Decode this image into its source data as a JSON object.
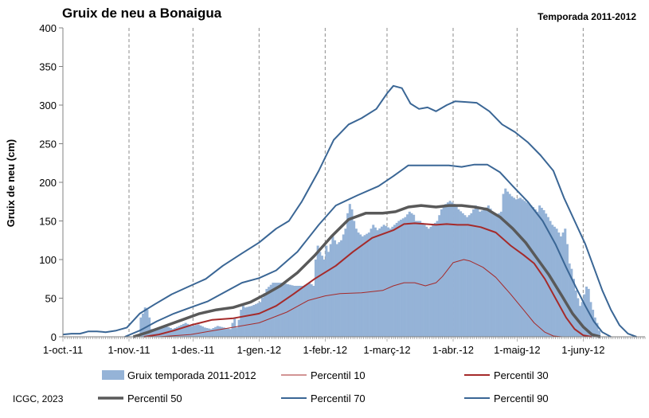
{
  "chart_data": {
    "type": "bar+line",
    "title": "Gruix de neu a Bonaigua",
    "subtitle": "Temporada 2011-2012",
    "ylabel": "Gruix de neu (cm)",
    "xlabel": "",
    "ylim": [
      0,
      400
    ],
    "yticks": [
      0,
      50,
      100,
      150,
      200,
      250,
      300,
      350,
      400
    ],
    "x_tick_labels": [
      "1-oct.-11",
      "1-nov.-11",
      "1-des.-11",
      "1-gen.-12",
      "1-febr.-12",
      "1-març-12",
      "1-abr.-12",
      "1-maig-12",
      "1-juny-12"
    ],
    "x_tick_days": [
      0,
      31,
      61,
      92,
      123,
      152,
      183,
      213,
      244
    ],
    "x_range_days": [
      0,
      273
    ],
    "grid": "vertical dashed at month starts",
    "legend_position": "bottom",
    "bars": {
      "name": "Gruix temporada 2011-2012",
      "color": "#95b3d7",
      "points": [
        [
          35,
          0
        ],
        [
          36,
          25
        ],
        [
          37,
          30
        ],
        [
          38,
          38
        ],
        [
          39,
          35
        ],
        [
          40,
          25
        ],
        [
          41,
          10
        ],
        [
          42,
          8
        ],
        [
          45,
          12
        ],
        [
          48,
          14
        ],
        [
          51,
          10
        ],
        [
          54,
          14
        ],
        [
          57,
          18
        ],
        [
          60,
          14
        ],
        [
          63,
          16
        ],
        [
          66,
          12
        ],
        [
          69,
          10
        ],
        [
          72,
          14
        ],
        [
          75,
          12
        ],
        [
          78,
          10
        ],
        [
          79,
          18
        ],
        [
          80,
          25
        ],
        [
          81,
          12
        ],
        [
          82,
          22
        ],
        [
          83,
          35
        ],
        [
          84,
          40
        ],
        [
          85,
          38
        ],
        [
          88,
          40
        ],
        [
          92,
          45
        ],
        [
          95,
          62
        ],
        [
          98,
          70
        ],
        [
          102,
          70
        ],
        [
          105,
          68
        ],
        [
          108,
          66
        ],
        [
          112,
          66
        ],
        [
          115,
          70
        ],
        [
          117,
          66
        ],
        [
          118,
          100
        ],
        [
          119,
          118
        ],
        [
          120,
          110
        ],
        [
          121,
          105
        ],
        [
          122,
          100
        ],
        [
          123,
          118
        ],
        [
          124,
          110
        ],
        [
          125,
          120
        ],
        [
          126,
          130
        ],
        [
          127,
          125
        ],
        [
          128,
          120
        ],
        [
          130,
          125
        ],
        [
          132,
          140
        ],
        [
          133,
          160
        ],
        [
          134,
          172
        ],
        [
          135,
          165
        ],
        [
          136,
          150
        ],
        [
          137,
          140
        ],
        [
          138,
          135
        ],
        [
          140,
          130
        ],
        [
          143,
          135
        ],
        [
          145,
          145
        ],
        [
          147,
          138
        ],
        [
          150,
          145
        ],
        [
          153,
          140
        ],
        [
          155,
          145
        ],
        [
          157,
          150
        ],
        [
          160,
          155
        ],
        [
          162,
          162
        ],
        [
          164,
          158
        ],
        [
          165,
          150
        ],
        [
          167,
          150
        ],
        [
          169,
          145
        ],
        [
          171,
          140
        ],
        [
          173,
          145
        ],
        [
          175,
          150
        ],
        [
          177,
          165
        ],
        [
          179,
          172
        ],
        [
          181,
          176
        ],
        [
          183,
          172
        ],
        [
          185,
          165
        ],
        [
          187,
          160
        ],
        [
          189,
          155
        ],
        [
          191,
          160
        ],
        [
          193,
          170
        ],
        [
          195,
          162
        ],
        [
          197,
          165
        ],
        [
          199,
          170
        ],
        [
          201,
          162
        ],
        [
          203,
          158
        ],
        [
          205,
          162
        ],
        [
          206,
          185
        ],
        [
          207,
          192
        ],
        [
          208,
          188
        ],
        [
          210,
          182
        ],
        [
          212,
          178
        ],
        [
          214,
          180
        ],
        [
          216,
          176
        ],
        [
          218,
          172
        ],
        [
          220,
          168
        ],
        [
          222,
          162
        ],
        [
          223,
          170
        ],
        [
          225,
          164
        ],
        [
          227,
          155
        ],
        [
          229,
          145
        ],
        [
          231,
          140
        ],
        [
          233,
          130
        ],
        [
          235,
          140
        ],
        [
          236,
          120
        ],
        [
          237,
          95
        ],
        [
          238,
          88
        ],
        [
          239,
          75
        ],
        [
          240,
          60
        ],
        [
          241,
          50
        ],
        [
          242,
          40
        ],
        [
          243,
          45
        ],
        [
          244,
          55
        ],
        [
          245,
          65
        ],
        [
          246,
          62
        ],
        [
          247,
          45
        ],
        [
          248,
          35
        ],
        [
          249,
          25
        ],
        [
          250,
          18
        ],
        [
          251,
          8
        ],
        [
          252,
          0
        ]
      ]
    },
    "series": [
      {
        "name": "Percentil 10",
        "color": "#a52a2a",
        "width": 1,
        "points": [
          [
            45,
            0
          ],
          [
            60,
            3
          ],
          [
            75,
            10
          ],
          [
            92,
            18
          ],
          [
            105,
            32
          ],
          [
            115,
            47
          ],
          [
            123,
            53
          ],
          [
            130,
            56
          ],
          [
            140,
            57
          ],
          [
            150,
            60
          ],
          [
            155,
            66
          ],
          [
            160,
            70
          ],
          [
            165,
            70
          ],
          [
            170,
            66
          ],
          [
            175,
            70
          ],
          [
            178,
            78
          ],
          [
            183,
            96
          ],
          [
            188,
            100
          ],
          [
            191,
            98
          ],
          [
            197,
            90
          ],
          [
            203,
            77
          ],
          [
            210,
            55
          ],
          [
            216,
            35
          ],
          [
            221,
            18
          ],
          [
            226,
            6
          ],
          [
            230,
            1
          ],
          [
            234,
            0
          ]
        ]
      },
      {
        "name": "Percentil 30",
        "color": "#a52a2a",
        "width": 2,
        "points": [
          [
            38,
            0
          ],
          [
            45,
            3
          ],
          [
            52,
            8
          ],
          [
            60,
            15
          ],
          [
            70,
            22
          ],
          [
            80,
            24
          ],
          [
            92,
            30
          ],
          [
            100,
            40
          ],
          [
            108,
            55
          ],
          [
            118,
            75
          ],
          [
            128,
            92
          ],
          [
            136,
            110
          ],
          [
            145,
            128
          ],
          [
            155,
            138
          ],
          [
            160,
            146
          ],
          [
            165,
            147
          ],
          [
            170,
            146
          ],
          [
            175,
            145
          ],
          [
            180,
            146
          ],
          [
            185,
            145
          ],
          [
            190,
            145
          ],
          [
            196,
            142
          ],
          [
            203,
            135
          ],
          [
            210,
            118
          ],
          [
            216,
            106
          ],
          [
            221,
            95
          ],
          [
            226,
            75
          ],
          [
            231,
            50
          ],
          [
            236,
            25
          ],
          [
            240,
            10
          ],
          [
            244,
            2
          ],
          [
            248,
            0
          ]
        ]
      },
      {
        "name": "Percentil 50",
        "color": "#595959",
        "width": 3.5,
        "points": [
          [
            33,
            0
          ],
          [
            40,
            6
          ],
          [
            48,
            14
          ],
          [
            56,
            22
          ],
          [
            64,
            30
          ],
          [
            72,
            35
          ],
          [
            80,
            38
          ],
          [
            88,
            45
          ],
          [
            95,
            55
          ],
          [
            102,
            66
          ],
          [
            110,
            83
          ],
          [
            118,
            105
          ],
          [
            126,
            130
          ],
          [
            134,
            152
          ],
          [
            142,
            160
          ],
          [
            150,
            160
          ],
          [
            156,
            162
          ],
          [
            162,
            168
          ],
          [
            168,
            170
          ],
          [
            175,
            168
          ],
          [
            181,
            170
          ],
          [
            187,
            170
          ],
          [
            193,
            168
          ],
          [
            199,
            165
          ],
          [
            205,
            155
          ],
          [
            211,
            140
          ],
          [
            217,
            122
          ],
          [
            222,
            103
          ],
          [
            228,
            80
          ],
          [
            234,
            53
          ],
          [
            239,
            30
          ],
          [
            244,
            13
          ],
          [
            248,
            3
          ],
          [
            252,
            0
          ]
        ]
      },
      {
        "name": "Percentil 70",
        "color": "#3a6695",
        "width": 2,
        "points": [
          [
            29,
            0
          ],
          [
            36,
            8
          ],
          [
            44,
            20
          ],
          [
            52,
            30
          ],
          [
            60,
            38
          ],
          [
            68,
            46
          ],
          [
            76,
            58
          ],
          [
            84,
            70
          ],
          [
            92,
            76
          ],
          [
            100,
            86
          ],
          [
            110,
            110
          ],
          [
            120,
            145
          ],
          [
            128,
            170
          ],
          [
            138,
            183
          ],
          [
            148,
            195
          ],
          [
            155,
            208
          ],
          [
            162,
            222
          ],
          [
            168,
            222
          ],
          [
            175,
            222
          ],
          [
            181,
            222
          ],
          [
            187,
            220
          ],
          [
            193,
            223
          ],
          [
            199,
            223
          ],
          [
            205,
            213
          ],
          [
            211,
            195
          ],
          [
            218,
            175
          ],
          [
            225,
            150
          ],
          [
            231,
            120
          ],
          [
            236,
            90
          ],
          [
            241,
            62
          ],
          [
            245,
            40
          ],
          [
            249,
            20
          ],
          [
            253,
            6
          ],
          [
            257,
            0
          ]
        ]
      },
      {
        "name": "Percentil 90",
        "color": "#3a6695",
        "width": 2,
        "points": [
          [
            0,
            3
          ],
          [
            4,
            4
          ],
          [
            8,
            4
          ],
          [
            12,
            7
          ],
          [
            16,
            7
          ],
          [
            20,
            6
          ],
          [
            25,
            8
          ],
          [
            30,
            12
          ],
          [
            36,
            30
          ],
          [
            43,
            42
          ],
          [
            51,
            55
          ],
          [
            59,
            65
          ],
          [
            67,
            75
          ],
          [
            75,
            92
          ],
          [
            84,
            108
          ],
          [
            92,
            122
          ],
          [
            100,
            140
          ],
          [
            106,
            150
          ],
          [
            112,
            175
          ],
          [
            120,
            215
          ],
          [
            127,
            255
          ],
          [
            134,
            275
          ],
          [
            140,
            283
          ],
          [
            147,
            295
          ],
          [
            152,
            315
          ],
          [
            155,
            325
          ],
          [
            159,
            322
          ],
          [
            163,
            302
          ],
          [
            167,
            295
          ],
          [
            171,
            297
          ],
          [
            175,
            292
          ],
          [
            180,
            300
          ],
          [
            184,
            305
          ],
          [
            189,
            304
          ],
          [
            194,
            303
          ],
          [
            200,
            292
          ],
          [
            206,
            275
          ],
          [
            212,
            265
          ],
          [
            218,
            252
          ],
          [
            224,
            235
          ],
          [
            230,
            215
          ],
          [
            235,
            180
          ],
          [
            240,
            150
          ],
          [
            245,
            120
          ],
          [
            249,
            90
          ],
          [
            253,
            60
          ],
          [
            257,
            35
          ],
          [
            261,
            15
          ],
          [
            265,
            4
          ],
          [
            269,
            0
          ]
        ]
      }
    ],
    "credit": "ICGC, 2023"
  }
}
